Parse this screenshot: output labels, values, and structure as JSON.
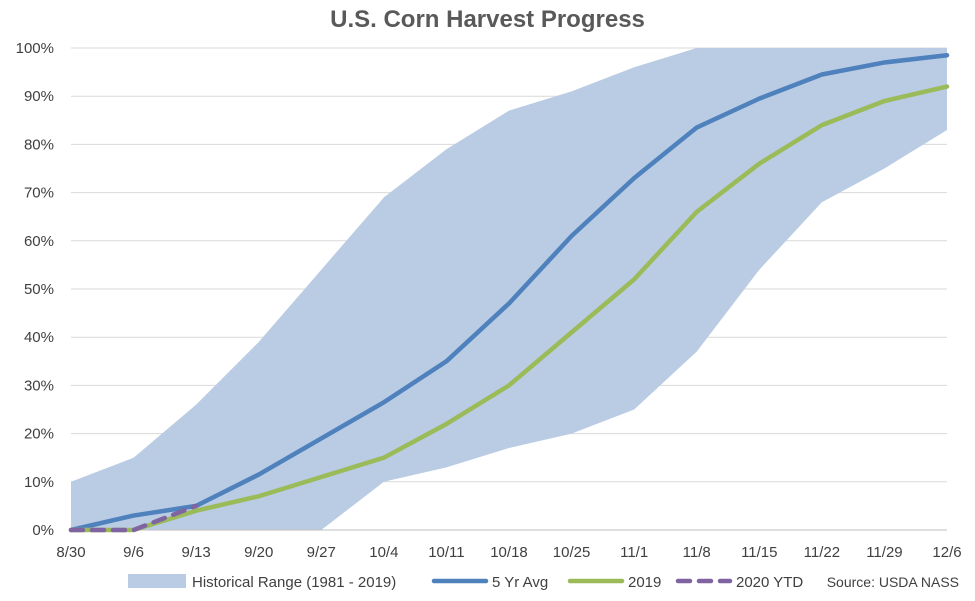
{
  "chart_data": {
    "type": "area",
    "title": "U.S. Corn Harvest Progress",
    "source": "Source: USDA NASS",
    "categories": [
      "8/30",
      "9/6",
      "9/13",
      "9/20",
      "9/27",
      "10/4",
      "10/11",
      "10/18",
      "10/25",
      "11/1",
      "11/8",
      "11/15",
      "11/22",
      "11/29",
      "12/6"
    ],
    "ylim": [
      0,
      100
    ],
    "y_ticks": [
      0,
      10,
      20,
      30,
      40,
      50,
      60,
      70,
      80,
      90,
      100
    ],
    "y_tick_labels": [
      "0%",
      "10%",
      "20%",
      "30%",
      "40%",
      "50%",
      "60%",
      "70%",
      "80%",
      "90%",
      "100%"
    ],
    "range": {
      "name": "Historical Range (1981 - 2019)",
      "color": "#b9cce4",
      "low": [
        0,
        0,
        0,
        0,
        0,
        10,
        13,
        17,
        20,
        25,
        37,
        54,
        68,
        75,
        83
      ],
      "high": [
        10,
        15,
        26,
        39,
        54,
        69,
        79,
        87,
        91,
        96,
        100,
        100,
        100,
        100,
        100
      ]
    },
    "series": [
      {
        "name": "5 Yr Avg",
        "color": "#4f81bd",
        "dashed": false,
        "values": [
          0,
          3,
          5,
          11.5,
          19,
          26.5,
          35,
          47,
          61,
          73,
          83.5,
          89.5,
          94.5,
          97,
          98.5
        ]
      },
      {
        "name": "2019",
        "color": "#9bbb59",
        "dashed": false,
        "values": [
          0,
          0,
          4,
          7,
          11,
          15,
          22,
          30,
          41,
          52,
          66,
          76,
          84,
          89,
          92
        ]
      },
      {
        "name": "2020 YTD",
        "color": "#8064a2",
        "dashed": true,
        "values": [
          0,
          0,
          5,
          null,
          null,
          null,
          null,
          null,
          null,
          null,
          null,
          null,
          null,
          null,
          null
        ]
      }
    ],
    "grid": "horizontal",
    "legend_position": "bottom"
  }
}
